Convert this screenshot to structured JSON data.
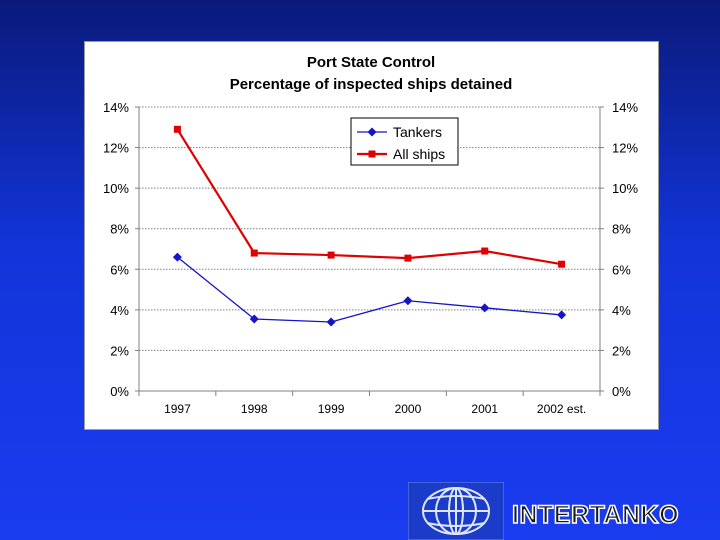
{
  "chart_data": {
    "type": "line",
    "title": "Port State Control",
    "subtitle": "Percentage of inspected ships detained",
    "categories": [
      "1997",
      "1998",
      "1999",
      "2000",
      "2001",
      "2002 est."
    ],
    "series": [
      {
        "name": "Tankers",
        "values": [
          6.6,
          3.55,
          3.4,
          4.45,
          4.1,
          3.75
        ],
        "color": "#1414c8",
        "marker": "diamond"
      },
      {
        "name": "All ships",
        "values": [
          12.9,
          6.8,
          6.7,
          6.55,
          6.9,
          6.25
        ],
        "color": "#e00000",
        "marker": "square"
      }
    ],
    "ylim": [
      0,
      14
    ],
    "y_ticks": [
      "0%",
      "2%",
      "4%",
      "6%",
      "8%",
      "10%",
      "12%",
      "14%"
    ],
    "y_tick_values": [
      0,
      2,
      4,
      6,
      8,
      10,
      12,
      14
    ],
    "grid": true,
    "legend": "top-center",
    "xlabel": "",
    "ylabel": ""
  },
  "branding": {
    "logo_text": "INTERTANKO",
    "globe": "globe-logo-icon",
    "globe_color": "#1a3cc8"
  },
  "background": {
    "top": "#0a1a7a",
    "bottom": "#1a3cf0"
  }
}
